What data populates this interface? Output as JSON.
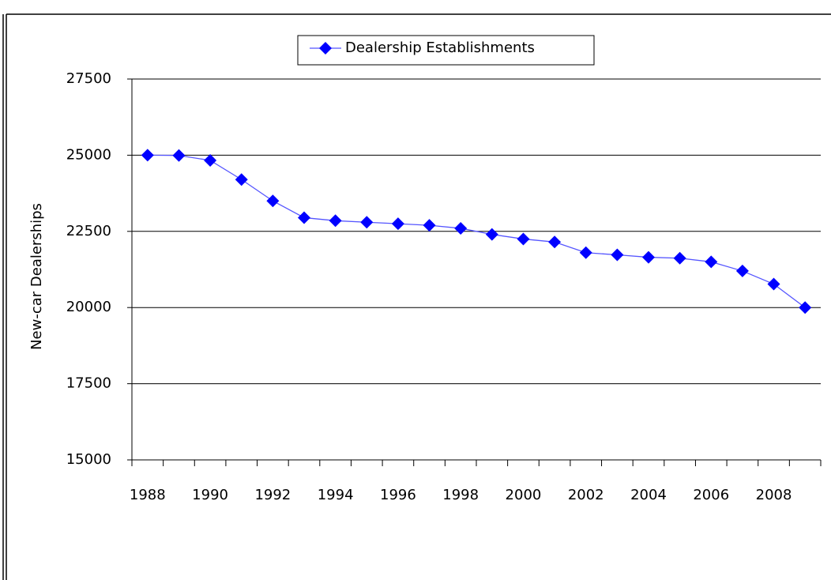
{
  "chart_data": {
    "type": "line",
    "categories": [
      "1988",
      null,
      "1990",
      null,
      "1992",
      null,
      "1994",
      null,
      "1996",
      null,
      "1998",
      null,
      "2000",
      null,
      "2002",
      null,
      "2004",
      null,
      "2006",
      null,
      "2008",
      null
    ],
    "series": [
      {
        "name": "Dealership Establishments",
        "color": "#0000ff",
        "values": [
          25000,
          24990,
          24830,
          24200,
          23500,
          22950,
          22850,
          22800,
          22750,
          22700,
          22600,
          22400,
          22250,
          22150,
          21800,
          21730,
          21650,
          21620,
          21500,
          21200,
          20770,
          20000
        ]
      }
    ],
    "y_label": "New-car Dealerships",
    "ylim": [
      15000,
      27500
    ],
    "yticks": [
      15000,
      17500,
      20000,
      22500,
      25000,
      27500
    ],
    "grid": true
  }
}
